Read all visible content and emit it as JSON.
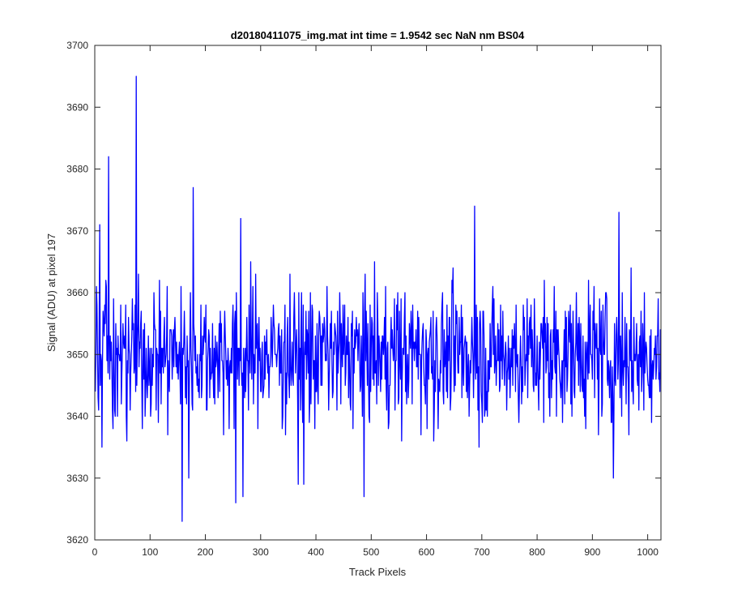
{
  "chart_data": {
    "type": "line",
    "title": "d20180411075_img.mat int time = 1.9542 sec  NaN nm BS04",
    "xlabel": "Track Pixels",
    "ylabel": "Signal (ADU) at pixel 197",
    "xlim": [
      0,
      1024
    ],
    "ylim": [
      3620,
      3700
    ],
    "xticks": [
      0,
      100,
      200,
      300,
      400,
      500,
      600,
      700,
      800,
      900,
      1000
    ],
    "yticks": [
      3620,
      3630,
      3640,
      3650,
      3660,
      3670,
      3680,
      3690,
      3700
    ],
    "grid": false,
    "line_color": "#0000ff",
    "series": [
      {
        "baseline": 3650,
        "noise_sd": 5.5,
        "n_points": 1024,
        "peaks": [
          {
            "x": 9,
            "y": 3671
          },
          {
            "x": 25,
            "y": 3682
          },
          {
            "x": 75,
            "y": 3695
          },
          {
            "x": 178,
            "y": 3677
          },
          {
            "x": 264,
            "y": 3672
          },
          {
            "x": 687,
            "y": 3674
          },
          {
            "x": 948,
            "y": 3673
          }
        ],
        "dips": [
          {
            "x": 158,
            "y": 3623
          },
          {
            "x": 170,
            "y": 3630
          },
          {
            "x": 255,
            "y": 3626
          },
          {
            "x": 268,
            "y": 3627
          },
          {
            "x": 368,
            "y": 3629
          },
          {
            "x": 378,
            "y": 3629
          },
          {
            "x": 487,
            "y": 3627
          },
          {
            "x": 938,
            "y": 3630
          }
        ]
      }
    ]
  }
}
